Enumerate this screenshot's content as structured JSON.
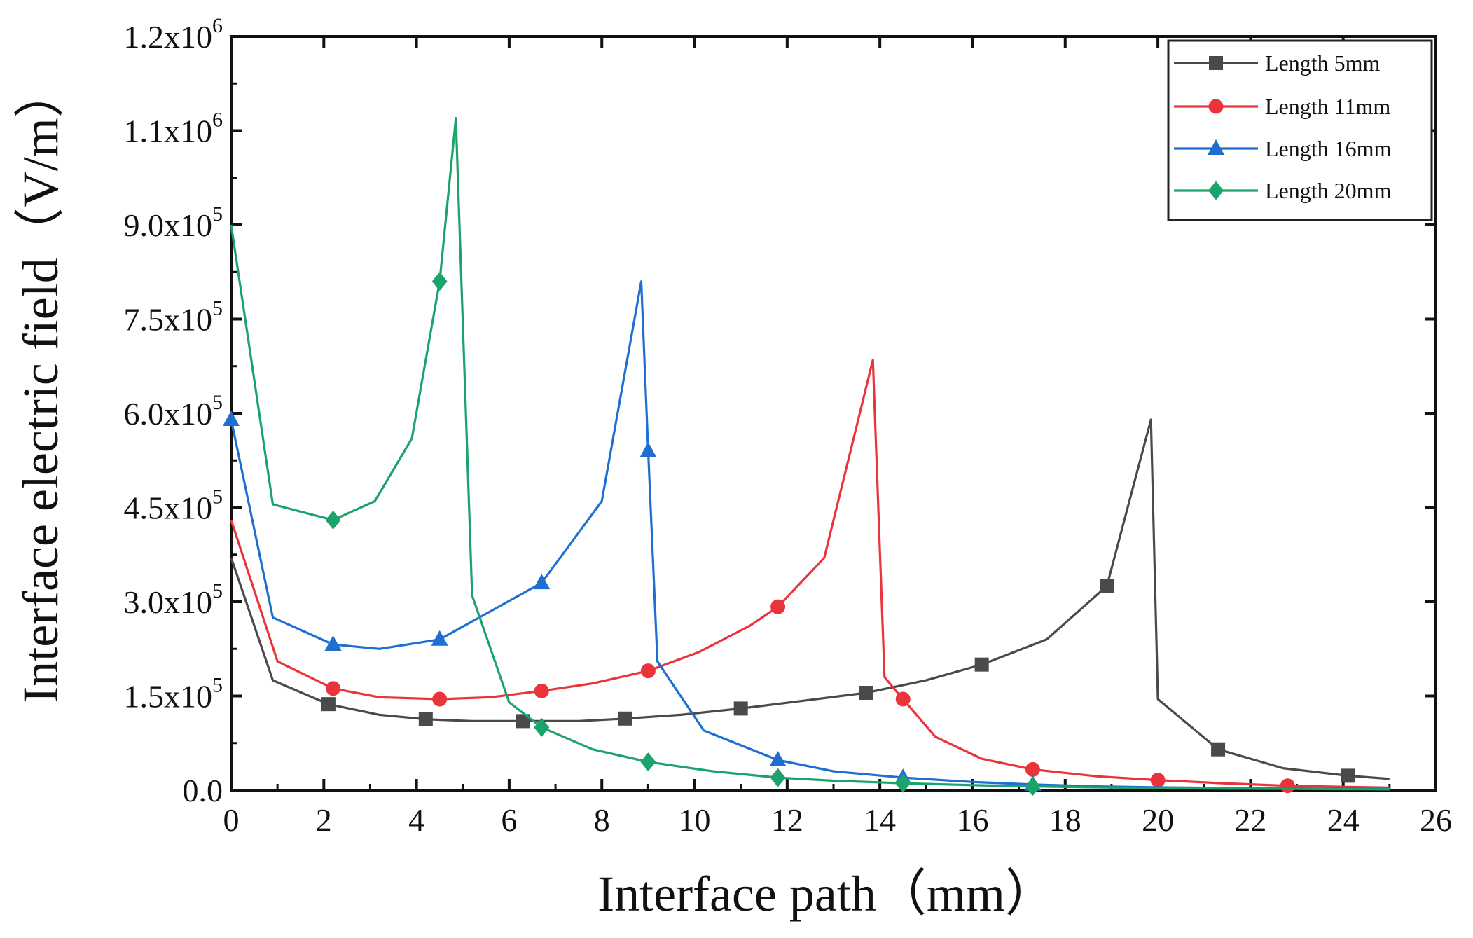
{
  "chart_data": {
    "type": "line",
    "title": "",
    "xlabel": "Interface path（mm）",
    "ylabel": "Interface electric field（V/m）",
    "xlim": [
      0,
      26
    ],
    "ylim": [
      0,
      1200000
    ],
    "x_ticks": [
      0,
      2,
      4,
      6,
      8,
      10,
      12,
      14,
      16,
      18,
      20,
      22,
      24,
      26
    ],
    "x_tick_labels": [
      "0",
      "2",
      "4",
      "6",
      "8",
      "10",
      "12",
      "14",
      "16",
      "18",
      "20",
      "22",
      "24",
      "26"
    ],
    "y_ticks": [
      0,
      150000,
      300000,
      450000,
      600000,
      750000,
      900000,
      1050000,
      1200000
    ],
    "y_tick_labels": [
      {
        "mantissa": "0.0",
        "exp": ""
      },
      {
        "mantissa": "1.5x10",
        "exp": "5"
      },
      {
        "mantissa": "3.0x10",
        "exp": "5"
      },
      {
        "mantissa": "4.5x10",
        "exp": "5"
      },
      {
        "mantissa": "6.0x10",
        "exp": "5"
      },
      {
        "mantissa": "7.5x10",
        "exp": "5"
      },
      {
        "mantissa": "9.0x10",
        "exp": "5"
      },
      {
        "mantissa": "1.1x10",
        "exp": "6"
      },
      {
        "mantissa": "1.2x10",
        "exp": "6"
      }
    ],
    "legend_position": "top-right",
    "series": [
      {
        "name": "Length 5mm",
        "color": "#4a4a4a",
        "marker": "square",
        "x": [
          0,
          0.9,
          2.1,
          3.2,
          4.2,
          5.2,
          6.3,
          7.5,
          8.5,
          9.7,
          11.0,
          12.3,
          13.7,
          15.0,
          16.2,
          17.6,
          18.9,
          19.85,
          20.0,
          21.3,
          22.7,
          24.1,
          25.0
        ],
        "y": [
          370000,
          175000,
          137000,
          120000,
          113000,
          110000,
          110000,
          110000,
          114000,
          120000,
          130000,
          142000,
          155000,
          175000,
          200000,
          240000,
          325000,
          590000,
          145000,
          65000,
          35000,
          23000,
          18000
        ],
        "marker_x": [
          2.1,
          4.2,
          6.3,
          8.5,
          11.0,
          13.7,
          16.2,
          18.9,
          21.3,
          24.1
        ],
        "marker_y": [
          137000,
          113000,
          110000,
          114000,
          130000,
          155000,
          200000,
          325000,
          65000,
          23000
        ]
      },
      {
        "name": "Length 11mm",
        "color": "#e8343a",
        "marker": "circle",
        "x": [
          0,
          1.0,
          2.2,
          3.2,
          4.5,
          5.6,
          6.7,
          7.8,
          9.0,
          10.1,
          11.2,
          11.8,
          12.8,
          13.85,
          14.1,
          14.5,
          15.2,
          16.2,
          17.3,
          18.7,
          20.0,
          21.4,
          22.8,
          24.2,
          25.0
        ],
        "y": [
          430000,
          205000,
          162000,
          148000,
          145000,
          148000,
          158000,
          170000,
          190000,
          220000,
          262000,
          292000,
          370000,
          685000,
          180000,
          145000,
          85000,
          50000,
          33000,
          22000,
          16000,
          11000,
          7000,
          5000,
          4000
        ],
        "marker_x": [
          2.2,
          4.5,
          6.7,
          9.0,
          11.8,
          14.5,
          17.3,
          20.0,
          22.8
        ],
        "marker_y": [
          162000,
          145000,
          158000,
          190000,
          292000,
          145000,
          33000,
          16000,
          7000
        ]
      },
      {
        "name": "Length 16mm",
        "color": "#1f6fd0",
        "marker": "triangle",
        "x": [
          0,
          0.9,
          2.2,
          3.2,
          4.5,
          5.6,
          6.7,
          8.0,
          8.85,
          9.0,
          9.2,
          10.2,
          11.8,
          13.0,
          14.5,
          16.0,
          17.3,
          18.7,
          20.0,
          21.5,
          22.8,
          24.2,
          25.0
        ],
        "y": [
          590000,
          275000,
          232000,
          225000,
          240000,
          285000,
          330000,
          460000,
          810000,
          540000,
          205000,
          95000,
          48000,
          30000,
          20000,
          13000,
          9000,
          6000,
          4500,
          3500,
          2800,
          2200,
          2000
        ],
        "marker_x": [
          0,
          2.2,
          4.5,
          6.7,
          9.0,
          11.8,
          14.5,
          17.3
        ],
        "marker_y": [
          590000,
          232000,
          240000,
          330000,
          540000,
          48000,
          20000,
          9000
        ]
      },
      {
        "name": "Length 20mm",
        "color": "#1aa36b",
        "marker": "diamond",
        "x": [
          0,
          0.9,
          2.2,
          3.1,
          3.9,
          4.5,
          4.85,
          5.2,
          6.0,
          6.7,
          7.8,
          9.0,
          10.4,
          11.8,
          13.0,
          14.5,
          16.0,
          17.3,
          18.7,
          20.0,
          21.5,
          23.0,
          24.5,
          25.0
        ],
        "y": [
          900000,
          455000,
          430000,
          460000,
          560000,
          810000,
          1070000,
          310000,
          140000,
          100000,
          65000,
          45000,
          30000,
          20000,
          15000,
          11000,
          8000,
          6000,
          4500,
          3500,
          2500,
          2000,
          1500,
          1200
        ],
        "marker_x": [
          2.2,
          4.5,
          6.7,
          9.0,
          11.8,
          14.5,
          17.3
        ],
        "marker_y": [
          430000,
          810000,
          100000,
          45000,
          20000,
          11000,
          6000
        ]
      }
    ]
  }
}
